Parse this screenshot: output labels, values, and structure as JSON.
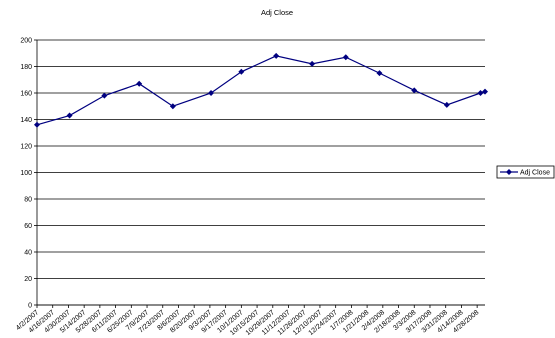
{
  "chart_data": {
    "type": "line",
    "title": "Adj Close",
    "x": [
      "2007-04-02",
      "2007-05-01",
      "2007-06-01",
      "2007-07-02",
      "2007-08-01",
      "2007-09-04",
      "2007-10-01",
      "2007-11-01",
      "2007-12-03",
      "2008-01-02",
      "2008-02-01",
      "2008-03-03",
      "2008-04-01",
      "2008-05-01",
      "2008-05-05"
    ],
    "series": [
      {
        "name": "Adj Close",
        "color": "#000080",
        "values": [
          136,
          143,
          158,
          167,
          150,
          160,
          176,
          188,
          182,
          187,
          175,
          162,
          151,
          160,
          161
        ]
      }
    ],
    "xlim": [
      "2007-04-02",
      "2008-05-05"
    ],
    "xticks": [
      {
        "value": "2007-04-02",
        "label": "4/2/2007"
      },
      {
        "value": "2007-04-16",
        "label": "4/16/2007"
      },
      {
        "value": "2007-04-30",
        "label": "4/30/2007"
      },
      {
        "value": "2007-05-14",
        "label": "5/14/2007"
      },
      {
        "value": "2007-05-28",
        "label": "5/28/2007"
      },
      {
        "value": "2007-06-11",
        "label": "6/11/2007"
      },
      {
        "value": "2007-06-25",
        "label": "6/25/2007"
      },
      {
        "value": "2007-07-09",
        "label": "7/9/2007"
      },
      {
        "value": "2007-07-23",
        "label": "7/23/2007"
      },
      {
        "value": "2007-08-06",
        "label": "8/6/2007"
      },
      {
        "value": "2007-08-20",
        "label": "8/20/2007"
      },
      {
        "value": "2007-09-03",
        "label": "9/3/2007"
      },
      {
        "value": "2007-09-17",
        "label": "9/17/2007"
      },
      {
        "value": "2007-10-01",
        "label": "10/1/2007"
      },
      {
        "value": "2007-10-15",
        "label": "10/15/2007"
      },
      {
        "value": "2007-10-29",
        "label": "10/29/2007"
      },
      {
        "value": "2007-11-12",
        "label": "11/12/2007"
      },
      {
        "value": "2007-11-26",
        "label": "11/26/2007"
      },
      {
        "value": "2007-12-10",
        "label": "12/10/2007"
      },
      {
        "value": "2007-12-24",
        "label": "12/24/2007"
      },
      {
        "value": "2008-01-07",
        "label": "1/7/2008"
      },
      {
        "value": "2008-01-21",
        "label": "1/21/2008"
      },
      {
        "value": "2008-02-04",
        "label": "2/4/2008"
      },
      {
        "value": "2008-02-18",
        "label": "2/18/2008"
      },
      {
        "value": "2008-03-03",
        "label": "3/3/2008"
      },
      {
        "value": "2008-03-17",
        "label": "3/17/2008"
      },
      {
        "value": "2008-03-31",
        "label": "3/31/2008"
      },
      {
        "value": "2008-04-14",
        "label": "4/14/2008"
      },
      {
        "value": "2008-04-28",
        "label": "4/28/2008"
      }
    ],
    "ylim": [
      0,
      200
    ],
    "yticks": [
      0,
      20,
      40,
      60,
      80,
      100,
      120,
      140,
      160,
      180,
      200
    ],
    "grid": true,
    "legend": "right"
  }
}
